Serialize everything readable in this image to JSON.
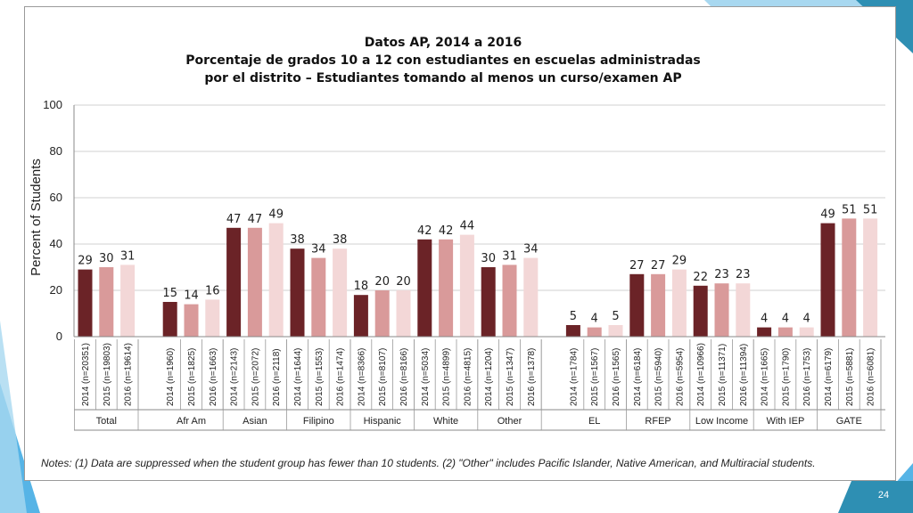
{
  "page_number": "24",
  "colors": {
    "series_2014": "#6b2327",
    "series_2015": "#d99a9a",
    "series_2016": "#f3d7d7",
    "accent_blue": "#56b4e6",
    "accent_teal": "#2e8fb3",
    "accent_light": "#a8d8f0"
  },
  "chart_data": {
    "type": "bar",
    "title_lines": [
      "Datos AP, 2014 a 2016",
      "Porcentaje de grados 10 a 12 con estudiantes en escuelas administradas",
      "por el distrito – Estudiantes tomando al menos un curso/examen AP"
    ],
    "ylabel": "Percent of Students",
    "ylim": [
      0,
      100
    ],
    "yticks": [
      "0",
      "20",
      "40",
      "60",
      "80",
      "100"
    ],
    "grid": true,
    "groups": [
      {
        "name": "Total",
        "bars": [
          {
            "label": "2014 (n=20351)",
            "year": "2014",
            "value": 29
          },
          {
            "label": "2015 (n=19803)",
            "year": "2015",
            "value": 30
          },
          {
            "label": "2016 (n=19614)",
            "year": "2016",
            "value": 31
          }
        ]
      },
      {
        "name": "Afr Am",
        "bars": [
          {
            "label": "2014 (n=1960)",
            "year": "2014",
            "value": 15
          },
          {
            "label": "2015 (n=1825)",
            "year": "2015",
            "value": 14
          },
          {
            "label": "2016 (n=1663)",
            "year": "2016",
            "value": 16
          }
        ]
      },
      {
        "name": "Asian",
        "bars": [
          {
            "label": "2014 (n=2143)",
            "year": "2014",
            "value": 47
          },
          {
            "label": "2015 (n=2072)",
            "year": "2015",
            "value": 47
          },
          {
            "label": "2016 (n=2118)",
            "year": "2016",
            "value": 49
          }
        ]
      },
      {
        "name": "Filipino",
        "bars": [
          {
            "label": "2014 (n=1644)",
            "year": "2014",
            "value": 38
          },
          {
            "label": "2015 (n=1553)",
            "year": "2015",
            "value": 34
          },
          {
            "label": "2016 (n=1474)",
            "year": "2016",
            "value": 38
          }
        ]
      },
      {
        "name": "Hispanic",
        "bars": [
          {
            "label": "2014 (n=8366)",
            "year": "2014",
            "value": 18
          },
          {
            "label": "2015 (n=8107)",
            "year": "2015",
            "value": 20
          },
          {
            "label": "2016 (n=8166)",
            "year": "2016",
            "value": 20
          }
        ]
      },
      {
        "name": "White",
        "bars": [
          {
            "label": "2014 (n=5034)",
            "year": "2014",
            "value": 42
          },
          {
            "label": "2015 (n=4899)",
            "year": "2015",
            "value": 42
          },
          {
            "label": "2016 (n=4815)",
            "year": "2016",
            "value": 44
          }
        ]
      },
      {
        "name": "Other",
        "bars": [
          {
            "label": "2014 (n=1204)",
            "year": "2014",
            "value": 30
          },
          {
            "label": "2015 (n=1347)",
            "year": "2015",
            "value": 31
          },
          {
            "label": "2016 (n=1378)",
            "year": "2016",
            "value": 34
          }
        ]
      },
      {
        "name": "EL",
        "bars": [
          {
            "label": "2014 (n=1784)",
            "year": "2014",
            "value": 5
          },
          {
            "label": "2015 (n=1567)",
            "year": "2015",
            "value": 4
          },
          {
            "label": "2016 (n=1565)",
            "year": "2016",
            "value": 5
          }
        ]
      },
      {
        "name": "RFEP",
        "bars": [
          {
            "label": "2014 (n=6184)",
            "year": "2014",
            "value": 27
          },
          {
            "label": "2015 (n=5940)",
            "year": "2015",
            "value": 27
          },
          {
            "label": "2016 (n=5954)",
            "year": "2016",
            "value": 29
          }
        ]
      },
      {
        "name": "Low Income",
        "bars": [
          {
            "label": "2014 (n=10966)",
            "year": "2014",
            "value": 22
          },
          {
            "label": "2015 (n=11371)",
            "year": "2015",
            "value": 23
          },
          {
            "label": "2016 (n=11394)",
            "year": "2016",
            "value": 23
          }
        ]
      },
      {
        "name": "With IEP",
        "bars": [
          {
            "label": "2014 (n=1665)",
            "year": "2014",
            "value": 4
          },
          {
            "label": "2015 (n=1790)",
            "year": "2015",
            "value": 4
          },
          {
            "label": "2016 (n=1753)",
            "year": "2016",
            "value": 4
          }
        ]
      },
      {
        "name": "GATE",
        "bars": [
          {
            "label": "2014 (n=6179)",
            "year": "2014",
            "value": 49
          },
          {
            "label": "2015 (n=5881)",
            "year": "2015",
            "value": 51
          },
          {
            "label": "2016 (n=6081)",
            "year": "2016",
            "value": 51
          }
        ]
      }
    ],
    "note": "Notes: (1) Data are suppressed when the student group has fewer than 10 students. (2) \"Other\" includes Pacific Islander, Native American, and Multiracial students."
  }
}
